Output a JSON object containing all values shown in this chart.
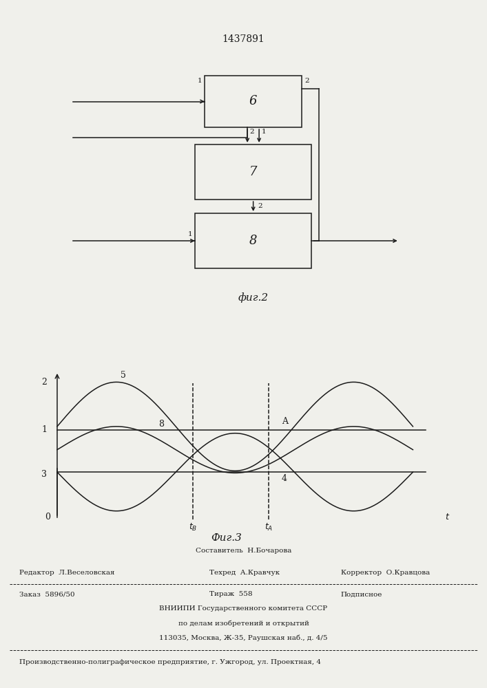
{
  "title": "1437891",
  "fig2_caption": "фиг.2",
  "fig3_caption": "Фиг.3",
  "box6_label": "6",
  "box7_label": "7",
  "box8_label": "8",
  "bg_color": "#f0f0eb",
  "line_color": "#1a1a1a",
  "t_B": 1.6,
  "t_A": 2.5,
  "footer_sestavitel": "Составитель  Н.Бочарова",
  "footer_redaktor": "Редактор  Л.Веселовская",
  "footer_tehred": "Техред  А.Кравчук",
  "footer_korrektor": "Корректор  О.Кравцова",
  "footer_zakaz": "Заказ  5896/50",
  "footer_tirazh": "Тираж  558",
  "footer_podpisnoe": "Подписное",
  "footer_vniipи1": "ВНИИПИ Государственного комитета СССР",
  "footer_vniipи2": "по делам изобретений и открытий",
  "footer_vniipи3": "113035, Москва, Ж-35, Раушская наб., д. 4/5",
  "footer_proizv": "Производственно-полиграфическое предприятие, г. Ужгород, ул. Проектная, 4"
}
